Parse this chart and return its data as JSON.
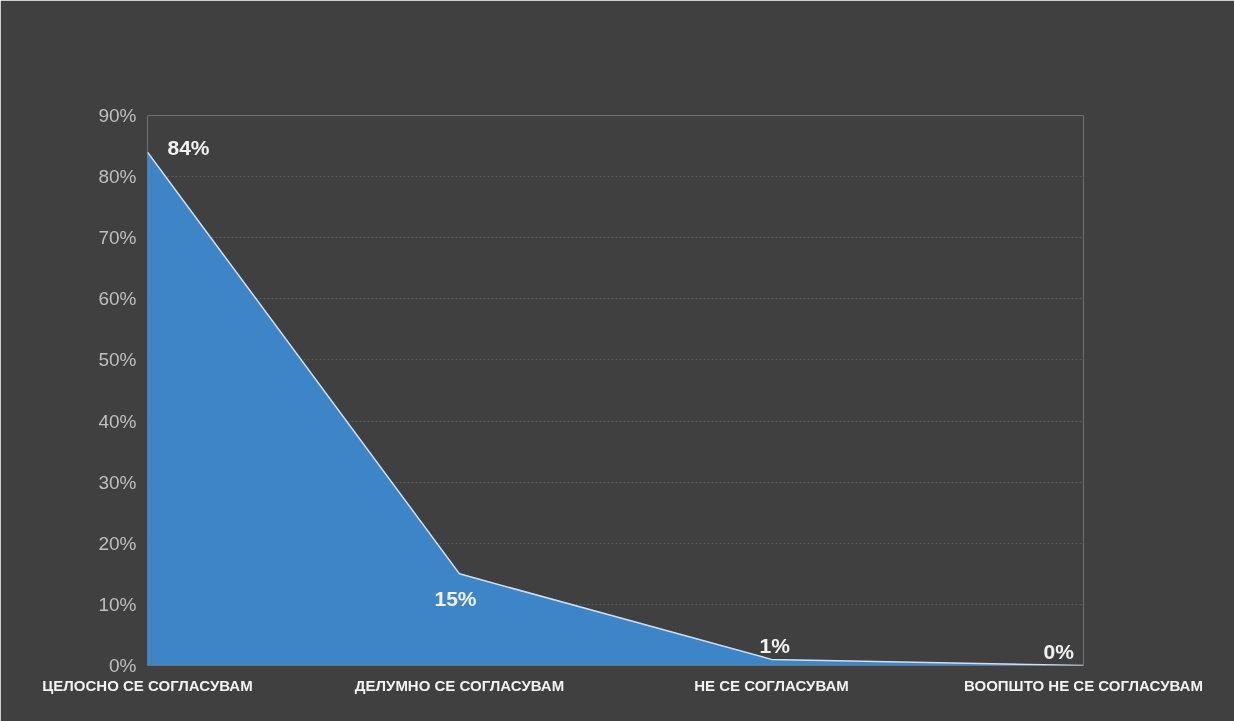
{
  "chart_data": {
    "type": "area",
    "categories": [
      "ЦЕЛОСНО СЕ СОГЛАСУВАМ",
      "ДЕЛУМНО СЕ СОГЛАСУВАМ",
      "НЕ СЕ СОГЛАСУВАМ",
      "ВООПШТО НЕ СЕ СОГЛАСУВАМ"
    ],
    "series": [
      {
        "color": "#3d85c6",
        "values": [
          84,
          15,
          1,
          0
        ],
        "value_labels": [
          "84%",
          "15%",
          "1%",
          "0%"
        ]
      }
    ],
    "ylim": [
      0,
      90
    ],
    "yticks": [
      {
        "value": 0,
        "label": "0%"
      },
      {
        "value": 10,
        "label": "10%"
      },
      {
        "value": 20,
        "label": "20%"
      },
      {
        "value": 30,
        "label": "30%"
      },
      {
        "value": 40,
        "label": "40%"
      },
      {
        "value": 50,
        "label": "50%"
      },
      {
        "value": 60,
        "label": "60%"
      },
      {
        "value": 70,
        "label": "70%"
      },
      {
        "value": 80,
        "label": "80%"
      },
      {
        "value": 90,
        "label": "90%"
      }
    ],
    "grid": "y"
  }
}
